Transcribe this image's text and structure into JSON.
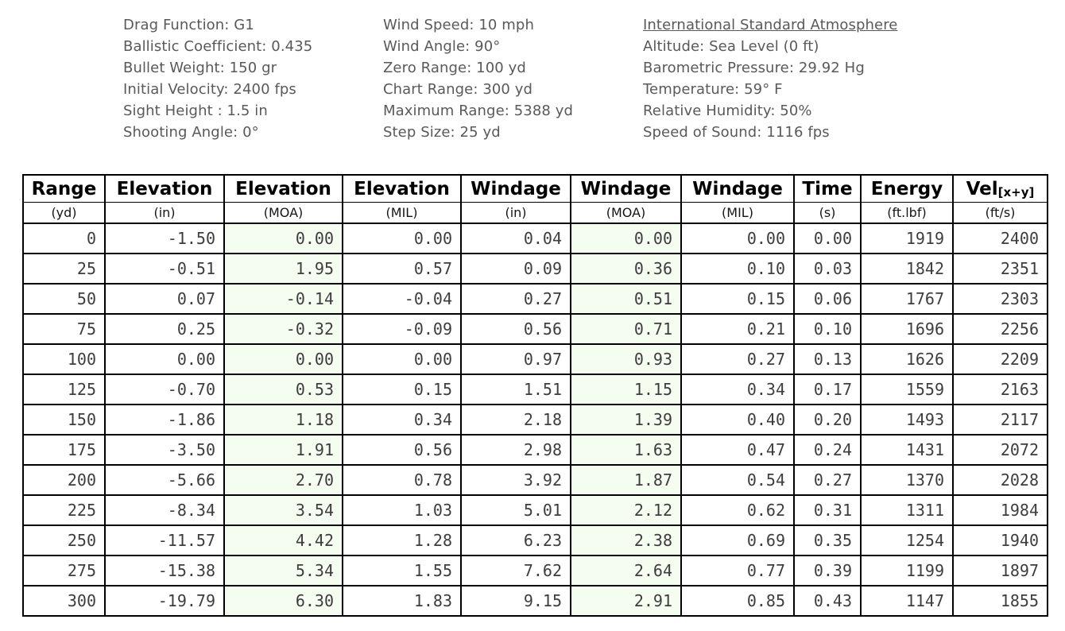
{
  "params": {
    "ballistics": [
      "Drag Function: G1",
      "Ballistic Coefficient: 0.435",
      "Bullet Weight: 150 gr",
      "Initial Velocity: 2400 fps",
      "Sight Height : 1.5 in",
      "Shooting Angle: 0°"
    ],
    "wind": [
      "Wind Speed: 10 mph",
      "Wind Angle: 90°",
      "Zero Range: 100 yd",
      "Chart Range: 300 yd",
      "Maximum Range: 5388 yd",
      "Step Size: 25 yd"
    ],
    "atmosphere_title": "International Standard Atmosphere",
    "atmosphere": [
      "Altitude: Sea Level (0 ft)",
      "Barometric Pressure: 29.92 Hg",
      "Temperature: 59° F",
      "Relative Humidity: 50%",
      "Speed of Sound: 1116 fps"
    ]
  },
  "chart_data": {
    "type": "table",
    "columns": [
      {
        "name": "Range",
        "unit": "(yd)"
      },
      {
        "name": "Elevation",
        "unit": "(in)"
      },
      {
        "name": "Elevation",
        "unit": "(MOA)"
      },
      {
        "name": "Elevation",
        "unit": "(MIL)"
      },
      {
        "name": "Windage",
        "unit": "(in)"
      },
      {
        "name": "Windage",
        "unit": "(MOA)"
      },
      {
        "name": "Windage",
        "unit": "(MIL)"
      },
      {
        "name": "Time",
        "unit": "(s)"
      },
      {
        "name": "Energy",
        "unit": "(ft.lbf)"
      },
      {
        "name": "Vel",
        "sub": "[x+y]",
        "unit": "(ft/s)"
      }
    ],
    "rows": [
      [
        "0",
        "-1.50",
        "0.00",
        "0.00",
        "0.04",
        "0.00",
        "0.00",
        "0.00",
        "1919",
        "2400"
      ],
      [
        "25",
        "-0.51",
        "1.95",
        "0.57",
        "0.09",
        "0.36",
        "0.10",
        "0.03",
        "1842",
        "2351"
      ],
      [
        "50",
        "0.07",
        "-0.14",
        "-0.04",
        "0.27",
        "0.51",
        "0.15",
        "0.06",
        "1767",
        "2303"
      ],
      [
        "75",
        "0.25",
        "-0.32",
        "-0.09",
        "0.56",
        "0.71",
        "0.21",
        "0.10",
        "1696",
        "2256"
      ],
      [
        "100",
        "0.00",
        "0.00",
        "0.00",
        "0.97",
        "0.93",
        "0.27",
        "0.13",
        "1626",
        "2209"
      ],
      [
        "125",
        "-0.70",
        "0.53",
        "0.15",
        "1.51",
        "1.15",
        "0.34",
        "0.17",
        "1559",
        "2163"
      ],
      [
        "150",
        "-1.86",
        "1.18",
        "0.34",
        "2.18",
        "1.39",
        "0.40",
        "0.20",
        "1493",
        "2117"
      ],
      [
        "175",
        "-3.50",
        "1.91",
        "0.56",
        "2.98",
        "1.63",
        "0.47",
        "0.24",
        "1431",
        "2072"
      ],
      [
        "200",
        "-5.66",
        "2.70",
        "0.78",
        "3.92",
        "1.87",
        "0.54",
        "0.27",
        "1370",
        "2028"
      ],
      [
        "225",
        "-8.34",
        "3.54",
        "1.03",
        "5.01",
        "2.12",
        "0.62",
        "0.31",
        "1311",
        "1984"
      ],
      [
        "250",
        "-11.57",
        "4.42",
        "1.28",
        "6.23",
        "2.38",
        "0.69",
        "0.35",
        "1254",
        "1940"
      ],
      [
        "275",
        "-15.38",
        "5.34",
        "1.55",
        "7.62",
        "2.64",
        "0.77",
        "0.39",
        "1199",
        "1897"
      ],
      [
        "300",
        "-19.79",
        "6.30",
        "1.83",
        "9.15",
        "2.91",
        "0.85",
        "0.43",
        "1147",
        "1855"
      ]
    ],
    "highlighted_columns": [
      "Elevation (MOA)",
      "Windage (MOA)"
    ]
  },
  "colors": {
    "moa_column_highlight": "#f5fcf0",
    "table_border": "#000000",
    "data_text": "#3d3d3d",
    "info_text": "#595959"
  }
}
